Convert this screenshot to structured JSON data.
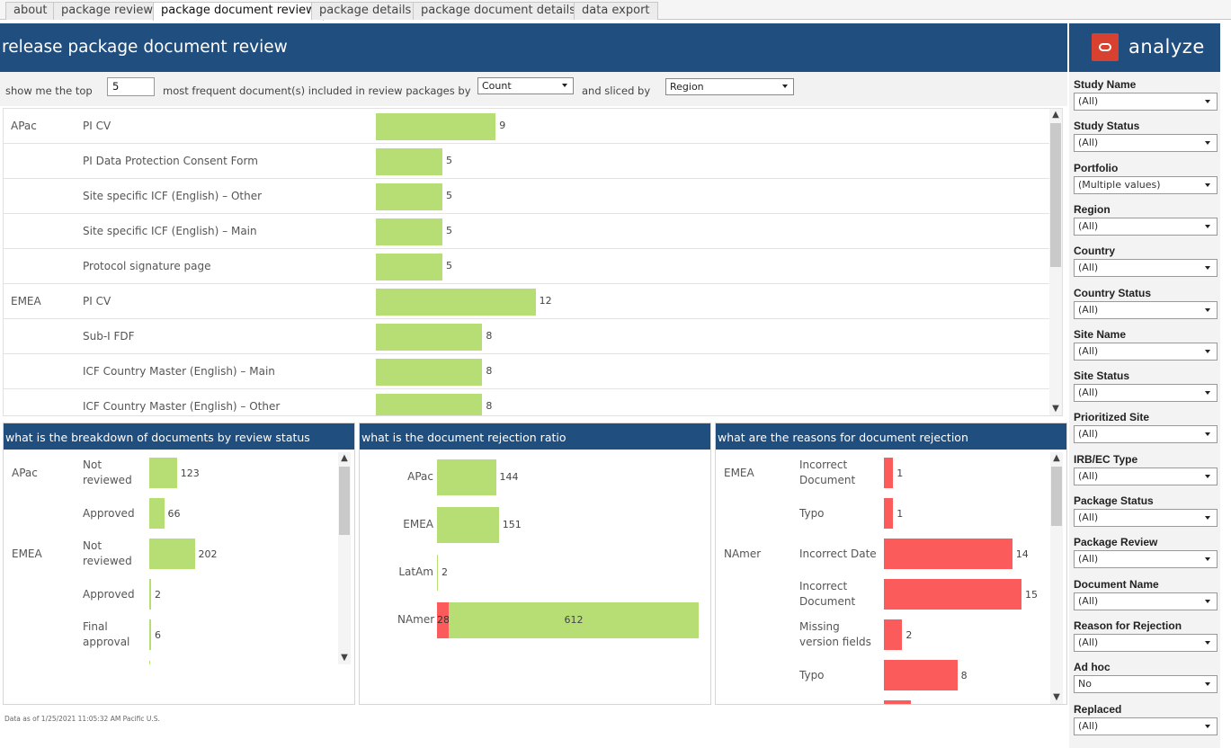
{
  "tabs": [
    "about",
    "package review",
    "package document review",
    "package details",
    "package document details",
    "data export"
  ],
  "active_tab": "package document review",
  "header": {
    "title": "release package document review",
    "brand": "analyze"
  },
  "controls": {
    "prefix": "show me the top",
    "top_n": "5",
    "middle": "most frequent document(s) included in review packages by",
    "measure": "Count",
    "sliced_label": "and sliced by",
    "slice": "Region"
  },
  "main_chart": {
    "rows": [
      {
        "region": "APac",
        "label": "PI CV",
        "value": 9
      },
      {
        "region": "",
        "label": "PI Data Protection Consent Form",
        "value": 5
      },
      {
        "region": "",
        "label": "Site specific ICF (English) – Other",
        "value": 5
      },
      {
        "region": "",
        "label": "Site specific ICF (English) – Main",
        "value": 5
      },
      {
        "region": "",
        "label": "Protocol signature page",
        "value": 5
      },
      {
        "region": "EMEA",
        "label": "PI CV",
        "value": 12
      },
      {
        "region": "",
        "label": "Sub-I FDF",
        "value": 8
      },
      {
        "region": "",
        "label": "ICF Country Master (English) – Main",
        "value": 8
      },
      {
        "region": "",
        "label": "ICF Country Master (English) – Other",
        "value": 8
      }
    ]
  },
  "panel1": {
    "title": "what is the breakdown of documents by review status",
    "region_apac": "APac",
    "region_emea": "EMEA",
    "rows": [
      {
        "label": "Not reviewed",
        "value": 123
      },
      {
        "label": "Approved",
        "value": 66
      },
      {
        "label": "Not reviewed",
        "value": 202
      },
      {
        "label": "Approved",
        "value": 2
      },
      {
        "label": "Final approval",
        "value": 6
      }
    ]
  },
  "panel2": {
    "title": "what is the document rejection ratio",
    "rows": [
      {
        "label": "APac",
        "rejected": null,
        "value": 144
      },
      {
        "label": "EMEA",
        "rejected": null,
        "value": 151
      },
      {
        "label": "LatAm",
        "rejected": null,
        "value": 2
      },
      {
        "label": "NAmer",
        "rejected": 28,
        "value": 612
      }
    ]
  },
  "panel3": {
    "title": "what are the reasons for document rejection",
    "region_emea": "EMEA",
    "region_namer": "NAmer",
    "rows": [
      {
        "label": "Incorrect Document",
        "value": 1
      },
      {
        "label": "Typo",
        "value": 1
      },
      {
        "label": "Incorrect Date",
        "value": 14
      },
      {
        "label": "Incorrect Document",
        "value": 15
      },
      {
        "label": "Missing version fields",
        "value": 2
      },
      {
        "label": "Typo",
        "value": 8
      }
    ]
  },
  "footnote": "Data as of 1/25/2021 11:05:32 AM Pacific U.S.",
  "filters": [
    {
      "label": "Study Name",
      "value": "(All)"
    },
    {
      "label": "Study Status",
      "value": "(All)"
    },
    {
      "label": "Portfolio",
      "value": "(Multiple values)"
    },
    {
      "label": "Region",
      "value": "(All)"
    },
    {
      "label": "Country",
      "value": "(All)"
    },
    {
      "label": "Country Status",
      "value": "(All)"
    },
    {
      "label": "Site Name",
      "value": "(All)"
    },
    {
      "label": "Site Status",
      "value": "(All)"
    },
    {
      "label": "Prioritized Site",
      "value": "(All)"
    },
    {
      "label": "IRB/EC Type",
      "value": "(All)"
    },
    {
      "label": "Package Status",
      "value": "(All)"
    },
    {
      "label": "Package Review",
      "value": "(All)"
    },
    {
      "label": "Document Name",
      "value": "(All)"
    },
    {
      "label": "Reason for Rejection",
      "value": "(All)"
    },
    {
      "label": "Ad hoc",
      "value": "No"
    },
    {
      "label": "Replaced",
      "value": "(All)"
    }
  ],
  "colors": {
    "header_bg": "#1f4e7f",
    "bar_green": "#b6de74",
    "bar_red": "#fb5b5b",
    "logo_red": "#d8412f"
  }
}
